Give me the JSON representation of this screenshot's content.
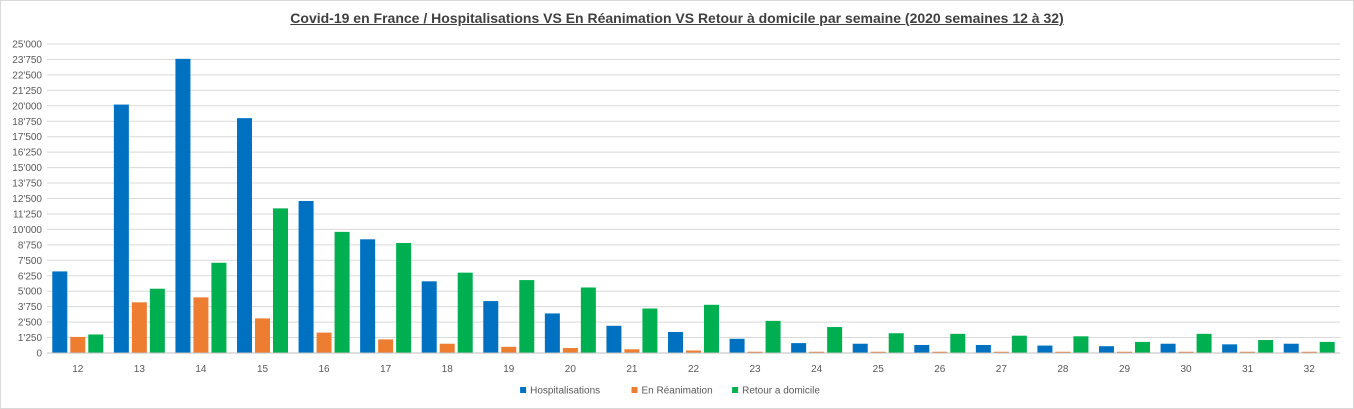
{
  "chart_data": {
    "type": "bar",
    "title": "Covid-19 en France / Hospitalisations VS En Réanimation VS Retour à domicile par semaine (2020 semaines 12 à 32)",
    "xlabel": "",
    "ylabel": "",
    "ylim": [
      0,
      25000
    ],
    "y_ticks": [
      "0",
      "1'250",
      "2'500",
      "3'750",
      "5'000",
      "6'250",
      "7'500",
      "8'750",
      "10'000",
      "11'250",
      "12'500",
      "13'750",
      "15'000",
      "16'250",
      "17'500",
      "18'750",
      "20'000",
      "21'250",
      "22'500",
      "23'750",
      "25'000"
    ],
    "grid": true,
    "legend_position": "bottom",
    "categories": [
      "12",
      "13",
      "14",
      "15",
      "16",
      "17",
      "18",
      "19",
      "20",
      "21",
      "22",
      "23",
      "24",
      "25",
      "26",
      "27",
      "28",
      "29",
      "30",
      "31",
      "32"
    ],
    "series": [
      {
        "name": "Hospitalisations",
        "color": "#0070c0",
        "values": [
          6600,
          20100,
          23800,
          19000,
          12300,
          9200,
          5800,
          4200,
          3200,
          2200,
          1700,
          1150,
          800,
          750,
          650,
          650,
          600,
          550,
          750,
          700,
          750
        ]
      },
      {
        "name": "En Réanimation",
        "color": "#ed7d31",
        "values": [
          1300,
          4100,
          4500,
          2800,
          1650,
          1100,
          750,
          500,
          400,
          300,
          200,
          100,
          100,
          100,
          100,
          100,
          100,
          100,
          100,
          100,
          100
        ]
      },
      {
        "name": "Retour a domicile",
        "color": "#00b050",
        "values": [
          1500,
          5200,
          7300,
          11700,
          9800,
          8900,
          6500,
          5900,
          5300,
          3600,
          3900,
          2600,
          2100,
          1600,
          1550,
          1400,
          1350,
          900,
          1550,
          1050,
          900
        ]
      }
    ]
  }
}
